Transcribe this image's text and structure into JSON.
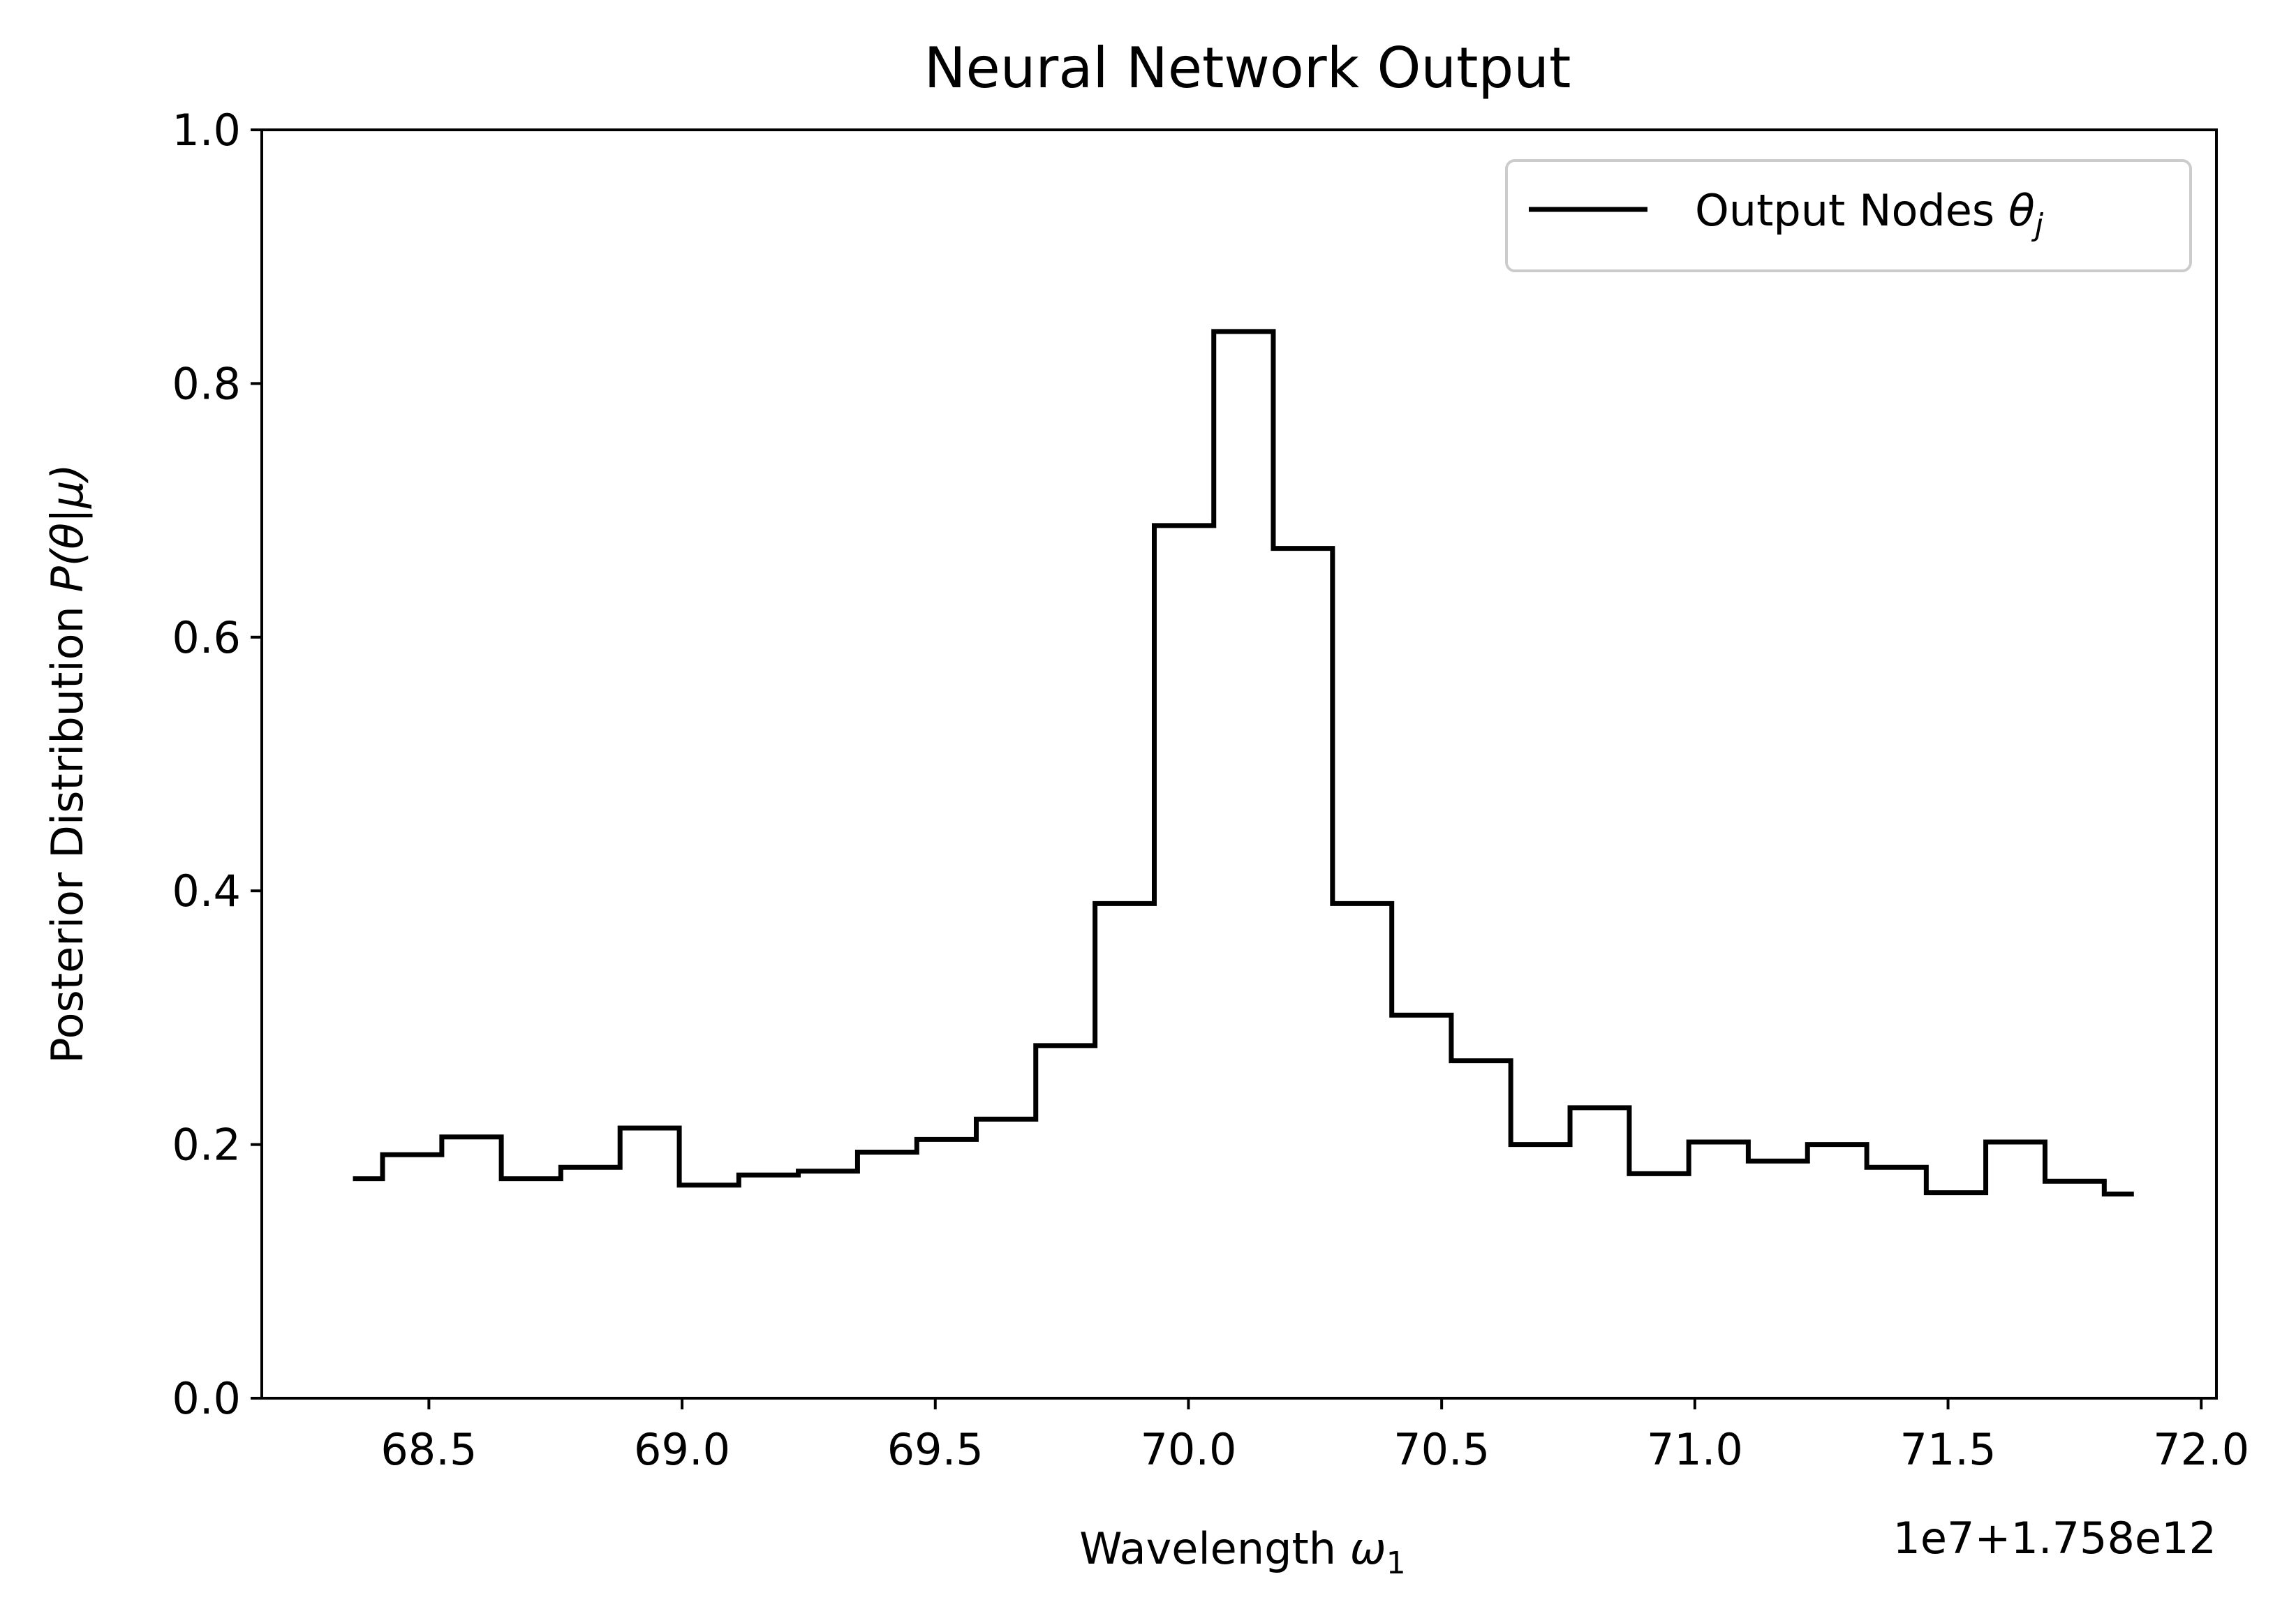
{
  "chart_data": {
    "type": "line",
    "drawstyle": "steps-mid",
    "title": "Neural Network Output",
    "xlabel_main": "Wavelength ",
    "xlabel_symbol": "ω",
    "xlabel_subscript": "1",
    "ylabel_main": "Posterior Distribution ",
    "ylabel_symbol": "P(θ|μ)",
    "offset_text": "1e7+1.758e12",
    "xlim": [
      68.17,
      72.03
    ],
    "ylim": [
      0.0,
      1.0
    ],
    "x_ticks": [
      68.5,
      69.0,
      69.5,
      70.0,
      70.5,
      71.0,
      71.5,
      72.0
    ],
    "x_tick_labels": [
      "68.5",
      "69.0",
      "69.5",
      "70.0",
      "70.5",
      "71.0",
      "71.5",
      "72.0"
    ],
    "y_ticks": [
      0.0,
      0.2,
      0.4,
      0.6,
      0.8,
      1.0
    ],
    "y_tick_labels": [
      "0.0",
      "0.2",
      "0.4",
      "0.6",
      "0.8",
      "1.0"
    ],
    "grid": false,
    "legend": {
      "placement": "upper-right",
      "entries": [
        {
          "label_main": "Output Nodes ",
          "label_symbol": "θ",
          "label_subscript": "j",
          "color": "#000000"
        }
      ]
    },
    "series": [
      {
        "name": "Output Nodes θj",
        "color": "#000000",
        "x": [
          68.35,
          68.467,
          68.584,
          68.702,
          68.819,
          68.936,
          69.053,
          69.171,
          69.288,
          69.405,
          69.522,
          69.64,
          69.757,
          69.874,
          69.991,
          70.109,
          70.226,
          70.343,
          70.46,
          70.578,
          70.695,
          70.812,
          70.929,
          71.047,
          71.164,
          71.281,
          71.398,
          71.516,
          71.633,
          71.75,
          71.867
        ],
        "values": [
          0.173,
          0.192,
          0.206,
          0.173,
          0.182,
          0.213,
          0.168,
          0.176,
          0.179,
          0.194,
          0.204,
          0.22,
          0.278,
          0.39,
          0.688,
          0.841,
          0.67,
          0.39,
          0.302,
          0.266,
          0.2,
          0.229,
          0.177,
          0.202,
          0.187,
          0.2,
          0.182,
          0.162,
          0.202,
          0.171,
          0.161
        ]
      }
    ]
  }
}
